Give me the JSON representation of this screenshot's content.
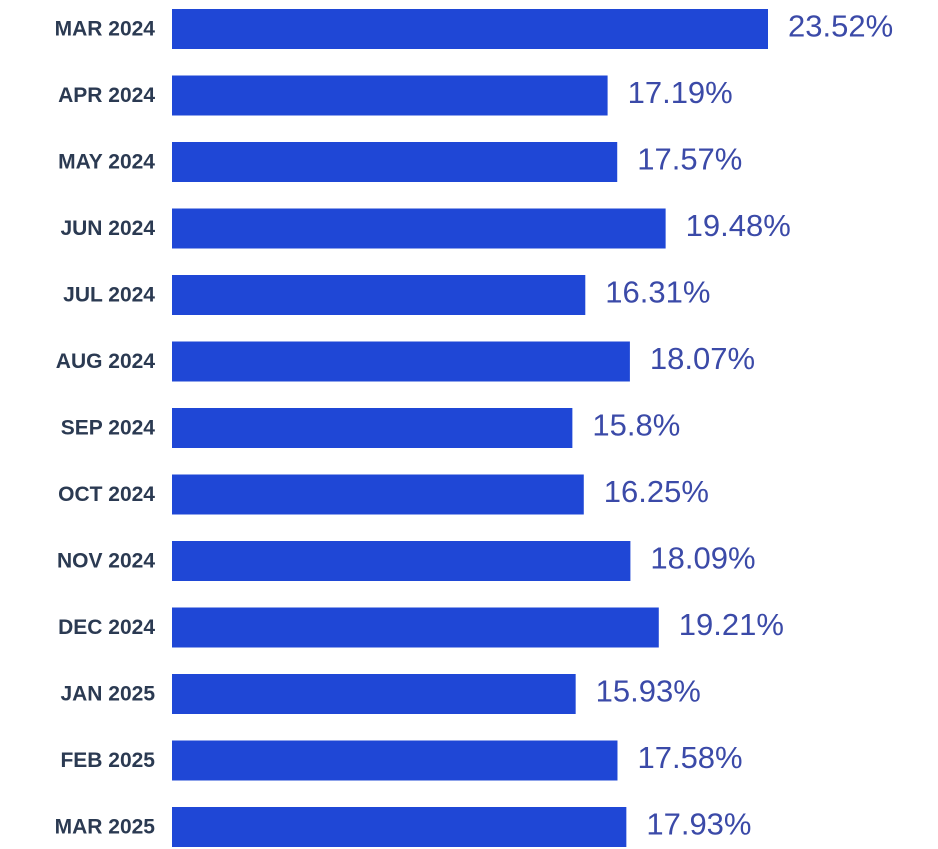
{
  "chart_data": {
    "type": "bar",
    "orientation": "horizontal",
    "categories": [
      "MAR 2024",
      "APR 2024",
      "MAY 2024",
      "JUN 2024",
      "JUL 2024",
      "AUG 2024",
      "SEP 2024",
      "OCT 2024",
      "NOV 2024",
      "DEC 2024",
      "JAN 2025",
      "FEB 2025",
      "MAR 2025"
    ],
    "values": [
      23.52,
      17.19,
      17.57,
      19.48,
      16.31,
      18.07,
      15.8,
      16.25,
      18.09,
      19.21,
      15.93,
      17.58,
      17.93
    ],
    "value_labels": [
      "23.52%",
      "17.19%",
      "17.57%",
      "19.48%",
      "16.31%",
      "18.07%",
      "15.8%",
      "16.25%",
      "18.09%",
      "19.21%",
      "15.93%",
      "17.58%",
      "17.93%"
    ],
    "xlim": [
      0,
      23.52
    ],
    "grid": false,
    "legend": "none",
    "bar_color": "#1f47d6",
    "label_color": "#2b3a52",
    "value_color": "#3b4aa8"
  }
}
